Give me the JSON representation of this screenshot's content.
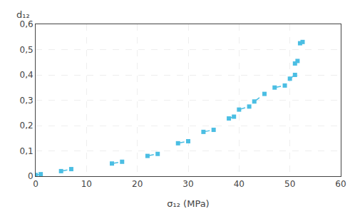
{
  "chart_data": {
    "type": "line",
    "xlabel": "σ₁₂ (MPa)",
    "ylabel": "d₁₂",
    "x": [
      0,
      1,
      null,
      5,
      7,
      null,
      15,
      17,
      null,
      22,
      24,
      null,
      28,
      30,
      null,
      33,
      35,
      null,
      38,
      39,
      null,
      40,
      42,
      null,
      43,
      45,
      null,
      47,
      49,
      null,
      50,
      51,
      null,
      51,
      51.5,
      null,
      52,
      52.5
    ],
    "values": [
      0.005,
      0.008,
      null,
      0.02,
      0.028,
      null,
      0.05,
      0.057,
      null,
      0.08,
      0.088,
      null,
      0.13,
      0.138,
      null,
      0.175,
      0.183,
      null,
      0.228,
      0.235,
      null,
      0.263,
      0.275,
      null,
      0.295,
      0.325,
      null,
      0.35,
      0.358,
      null,
      0.385,
      0.4,
      null,
      0.445,
      0.455,
      null,
      0.525,
      0.53
    ],
    "color": "#4BBEE3",
    "marker": "square",
    "line_style": "dashed",
    "xlim": [
      0,
      60
    ],
    "ylim": [
      0,
      0.6
    ],
    "xticks": [
      0,
      10,
      20,
      30,
      40,
      50,
      60
    ],
    "yticks": [
      0,
      {
        "value": 0.1,
        "label": "0,1"
      },
      {
        "value": 0.2,
        "label": "0,2"
      },
      {
        "value": 0.3,
        "label": "0,3"
      },
      {
        "value": 0.4,
        "label": "0,4"
      },
      {
        "value": 0.5,
        "label": "0,5"
      },
      {
        "value": 0.6,
        "label": "0,6"
      }
    ],
    "grid": true
  }
}
